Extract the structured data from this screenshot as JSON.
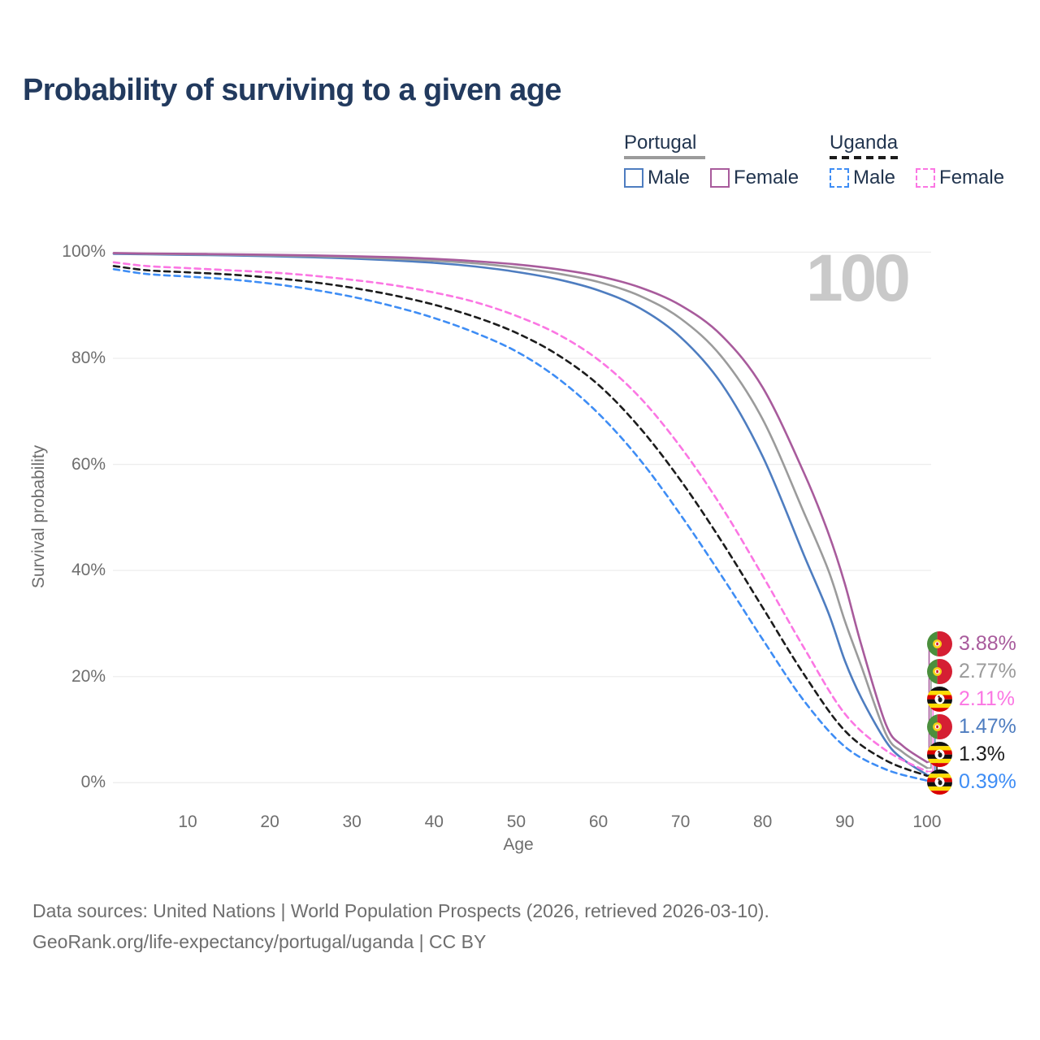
{
  "header": {
    "title": "Probability of surviving to a given age"
  },
  "watermark": "100",
  "legend": {
    "groups": [
      {
        "name": "Portugal",
        "underline_style": "solid",
        "underline_color": "#9b9b9b",
        "items": [
          {
            "label": "Male",
            "color": "#4e7dc0",
            "dashed": false
          },
          {
            "label": "Female",
            "color": "#a85b9c",
            "dashed": false
          }
        ]
      },
      {
        "name": "Uganda",
        "underline_style": "dashed",
        "underline_color": "#1c1c1c",
        "items": [
          {
            "label": "Male",
            "color": "#3e8df5",
            "dashed": true
          },
          {
            "label": "Female",
            "color": "#fb76e3",
            "dashed": true
          }
        ]
      }
    ]
  },
  "chart_data": {
    "type": "line",
    "title": "Probability of surviving to a given age",
    "xlabel": "Age",
    "ylabel": "Survival probability",
    "xlim": [
      0,
      100
    ],
    "ylim": [
      0,
      100
    ],
    "grid": true,
    "legend_position": "top-right",
    "x_ticks": [
      10,
      20,
      30,
      40,
      50,
      60,
      70,
      80,
      90,
      100
    ],
    "y_ticks": [
      {
        "pct": 0,
        "label": "0%"
      },
      {
        "pct": 20,
        "label": "20%"
      },
      {
        "pct": 40,
        "label": "40%"
      },
      {
        "pct": 60,
        "label": "60%"
      },
      {
        "pct": 80,
        "label": "80%"
      },
      {
        "pct": 100,
        "label": "100%"
      }
    ],
    "hover_age": "100",
    "series": [
      {
        "id": "portugal-male",
        "country": "Portugal",
        "label": "Male",
        "color": "#4e7dc0",
        "style": "solid",
        "points": [
          [
            1,
            99.7
          ],
          [
            5,
            99.6
          ],
          [
            10,
            99.5
          ],
          [
            15,
            99.4
          ],
          [
            20,
            99.25
          ],
          [
            25,
            99.05
          ],
          [
            30,
            98.8
          ],
          [
            35,
            98.45
          ],
          [
            40,
            98.0
          ],
          [
            45,
            97.3
          ],
          [
            50,
            96.3
          ],
          [
            55,
            94.9
          ],
          [
            60,
            92.8
          ],
          [
            65,
            89.5
          ],
          [
            70,
            84.0
          ],
          [
            75,
            75.2
          ],
          [
            80,
            61.5
          ],
          [
            85,
            43.0
          ],
          [
            88,
            32.0
          ],
          [
            90,
            23.0
          ],
          [
            92,
            16.0
          ],
          [
            95,
            7.8
          ],
          [
            97,
            4.5
          ],
          [
            100,
            1.47
          ]
        ]
      },
      {
        "id": "portugal-combined",
        "country": "Portugal",
        "label": "",
        "color": "#9b9b9b",
        "style": "solid",
        "points": [
          [
            1,
            99.8
          ],
          [
            5,
            99.7
          ],
          [
            10,
            99.62
          ],
          [
            15,
            99.52
          ],
          [
            20,
            99.4
          ],
          [
            25,
            99.25
          ],
          [
            30,
            99.05
          ],
          [
            35,
            98.78
          ],
          [
            40,
            98.4
          ],
          [
            45,
            97.9
          ],
          [
            50,
            97.1
          ],
          [
            55,
            96.0
          ],
          [
            60,
            94.4
          ],
          [
            65,
            91.8
          ],
          [
            70,
            87.5
          ],
          [
            75,
            80.3
          ],
          [
            80,
            68.5
          ],
          [
            85,
            51.0
          ],
          [
            88,
            40.0
          ],
          [
            90,
            30.5
          ],
          [
            92,
            22.0
          ],
          [
            95,
            9.2
          ],
          [
            97,
            5.8
          ],
          [
            100,
            2.77
          ]
        ]
      },
      {
        "id": "portugal-female",
        "country": "Portugal",
        "label": "Female",
        "color": "#a85b9c",
        "style": "solid",
        "points": [
          [
            1,
            99.85
          ],
          [
            5,
            99.75
          ],
          [
            10,
            99.7
          ],
          [
            15,
            99.62
          ],
          [
            20,
            99.52
          ],
          [
            25,
            99.4
          ],
          [
            30,
            99.25
          ],
          [
            35,
            99.05
          ],
          [
            40,
            98.75
          ],
          [
            45,
            98.3
          ],
          [
            50,
            97.7
          ],
          [
            55,
            96.8
          ],
          [
            60,
            95.5
          ],
          [
            65,
            93.4
          ],
          [
            70,
            90.0
          ],
          [
            75,
            84.3
          ],
          [
            80,
            74.5
          ],
          [
            85,
            58.5
          ],
          [
            88,
            47.0
          ],
          [
            90,
            37.5
          ],
          [
            92,
            26.0
          ],
          [
            95,
            11.0
          ],
          [
            97,
            7.0
          ],
          [
            100,
            3.88
          ]
        ]
      },
      {
        "id": "uganda-male",
        "country": "Uganda",
        "label": "Male",
        "color": "#3e8df5",
        "style": "dashed",
        "points": [
          [
            1,
            96.8
          ],
          [
            5,
            95.9
          ],
          [
            10,
            95.4
          ],
          [
            15,
            94.9
          ],
          [
            20,
            94.1
          ],
          [
            25,
            93.0
          ],
          [
            30,
            91.6
          ],
          [
            35,
            89.8
          ],
          [
            40,
            87.6
          ],
          [
            45,
            84.8
          ],
          [
            50,
            81.3
          ],
          [
            55,
            76.3
          ],
          [
            60,
            69.6
          ],
          [
            65,
            61.0
          ],
          [
            70,
            50.5
          ],
          [
            75,
            39.0
          ],
          [
            80,
            27.0
          ],
          [
            85,
            15.5
          ],
          [
            90,
            6.8
          ],
          [
            95,
            2.5
          ],
          [
            100,
            0.39
          ]
        ]
      },
      {
        "id": "uganda-combined",
        "country": "Uganda",
        "label": "",
        "color": "#1c1c1c",
        "style": "dashed",
        "points": [
          [
            1,
            97.4
          ],
          [
            5,
            96.6
          ],
          [
            10,
            96.2
          ],
          [
            15,
            95.8
          ],
          [
            20,
            95.2
          ],
          [
            25,
            94.4
          ],
          [
            30,
            93.3
          ],
          [
            35,
            91.9
          ],
          [
            40,
            90.1
          ],
          [
            45,
            87.8
          ],
          [
            50,
            84.8
          ],
          [
            55,
            80.7
          ],
          [
            60,
            75.0
          ],
          [
            65,
            67.0
          ],
          [
            70,
            57.0
          ],
          [
            75,
            45.5
          ],
          [
            80,
            33.0
          ],
          [
            85,
            20.5
          ],
          [
            90,
            9.8
          ],
          [
            95,
            4.2
          ],
          [
            100,
            1.3
          ]
        ]
      },
      {
        "id": "uganda-female",
        "country": "Uganda",
        "label": "Female",
        "color": "#fb76e3",
        "style": "dashed",
        "points": [
          [
            1,
            98.1
          ],
          [
            5,
            97.4
          ],
          [
            10,
            97.0
          ],
          [
            15,
            96.6
          ],
          [
            20,
            96.2
          ],
          [
            25,
            95.6
          ],
          [
            30,
            94.8
          ],
          [
            35,
            93.8
          ],
          [
            40,
            92.4
          ],
          [
            45,
            90.6
          ],
          [
            50,
            88.0
          ],
          [
            55,
            84.6
          ],
          [
            60,
            79.7
          ],
          [
            65,
            72.7
          ],
          [
            70,
            63.3
          ],
          [
            75,
            52.0
          ],
          [
            80,
            39.0
          ],
          [
            85,
            25.5
          ],
          [
            90,
            13.0
          ],
          [
            95,
            6.1
          ],
          [
            100,
            2.11
          ]
        ]
      }
    ],
    "end_labels": [
      {
        "flag": "portugal",
        "value": "3.88%",
        "pct": 3.88,
        "color": "#a85b9c"
      },
      {
        "flag": "portugal",
        "value": "2.77%",
        "pct": 2.77,
        "color": "#9b9b9b"
      },
      {
        "flag": "uganda",
        "value": "2.11%",
        "pct": 2.11,
        "color": "#fb76e3"
      },
      {
        "flag": "portugal",
        "value": "1.47%",
        "pct": 1.47,
        "color": "#4e7dc0"
      },
      {
        "flag": "uganda",
        "value": "1.3%",
        "pct": 1.3,
        "color": "#1c1c1c"
      },
      {
        "flag": "uganda",
        "value": "0.39%",
        "pct": 0.39,
        "color": "#3e8df5"
      }
    ]
  },
  "footer": {
    "line1": "Data sources: United Nations | World Population Prospects (2026, retrieved 2026-03-10).",
    "line2": "GeoRank.org/life-expectancy/portugal/uganda | CC BY"
  }
}
